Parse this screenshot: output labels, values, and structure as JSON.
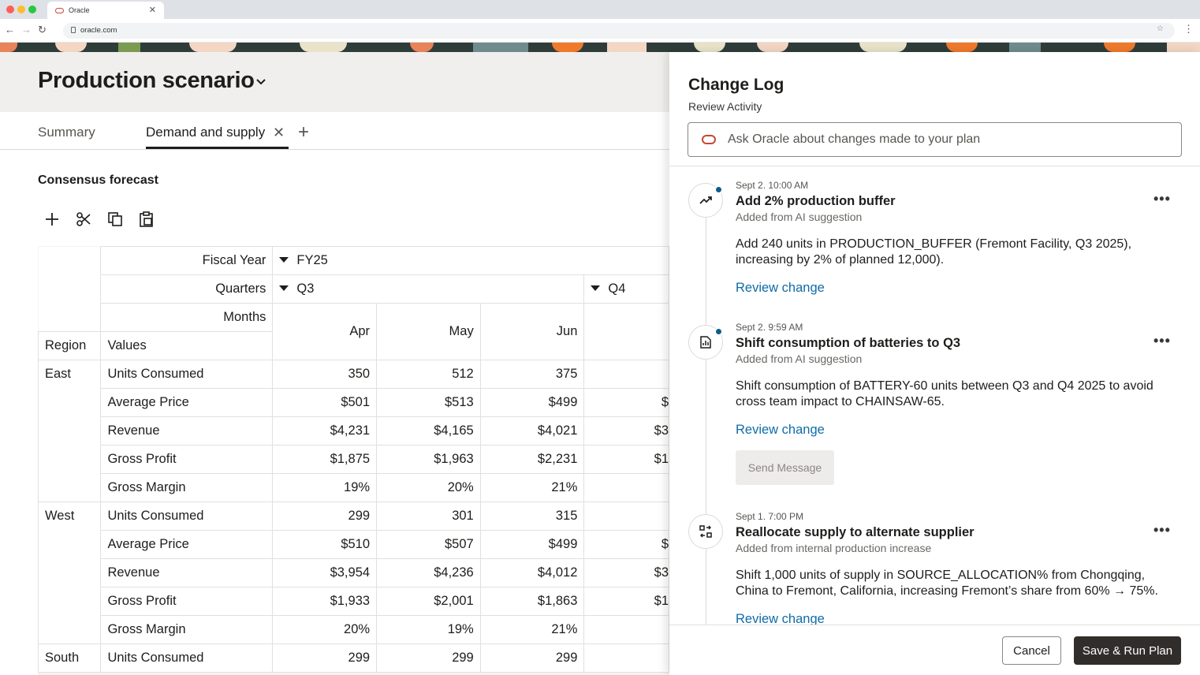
{
  "browser": {
    "tab_title": "Oracle",
    "url": "oracle.com"
  },
  "page": {
    "title": "Production scenario",
    "tabs": [
      {
        "label": "Summary"
      },
      {
        "label": "Demand and supply",
        "active": true
      }
    ],
    "section_title": "Consensus forecast"
  },
  "grid": {
    "fiscal_year_label": "Fiscal Year",
    "fiscal_year": "FY25",
    "quarters_label": "Quarters",
    "q3": "Q3",
    "q4": "Q4",
    "months_label": "Months",
    "months": [
      "Apr",
      "May",
      "Jun"
    ],
    "region_label": "Region",
    "values_label": "Values",
    "regions": [
      {
        "name": "East",
        "rows": [
          {
            "label": "Units Consumed",
            "values": [
              "350",
              "512",
              "375"
            ],
            "peek": ""
          },
          {
            "label": "Average Price",
            "values": [
              "$501",
              "$513",
              "$499"
            ],
            "peek": "$"
          },
          {
            "label": "Revenue",
            "values": [
              "$4,231",
              "$4,165",
              "$4,021"
            ],
            "peek": "$3"
          },
          {
            "label": "Gross Profit",
            "values": [
              "$1,875",
              "$1,963",
              "$2,231"
            ],
            "peek": "$1"
          },
          {
            "label": "Gross Margin",
            "values": [
              "19%",
              "20%",
              "21%"
            ],
            "peek": ""
          }
        ]
      },
      {
        "name": "West",
        "rows": [
          {
            "label": "Units Consumed",
            "values": [
              "299",
              "301",
              "315"
            ],
            "peek": ""
          },
          {
            "label": "Average Price",
            "values": [
              "$510",
              "$507",
              "$499"
            ],
            "peek": "$"
          },
          {
            "label": "Revenue",
            "values": [
              "$3,954",
              "$4,236",
              "$4,012"
            ],
            "peek": "$3"
          },
          {
            "label": "Gross Profit",
            "values": [
              "$1,933",
              "$2,001",
              "$1,863"
            ],
            "peek": "$1"
          },
          {
            "label": "Gross Margin",
            "values": [
              "20%",
              "19%",
              "21%"
            ],
            "peek": ""
          }
        ]
      },
      {
        "name": "South",
        "rows": [
          {
            "label": "Units Consumed",
            "values": [
              "299",
              "299",
              "299"
            ],
            "peek": ""
          }
        ]
      }
    ]
  },
  "change_log": {
    "title": "Change Log",
    "subtitle": "Review Activity",
    "ask_placeholder": "Ask Oracle about changes made to your plan",
    "review_label": "Review change",
    "send_message_label": "Send Message",
    "entries": [
      {
        "timestamp": "Sept 2. 10:00 AM",
        "title": "Add 2% production buffer",
        "source": "Added from AI suggestion",
        "body": "Add 240 units in PRODUCTION_BUFFER (Fremont Facility, Q3 2025), increasing by 2% of planned 12,000).",
        "icon": "trending-up-icon",
        "unread": true
      },
      {
        "timestamp": "Sept 2. 9:59 AM",
        "title": "Shift consumption of batteries to Q3",
        "source": "Added from AI suggestion",
        "body": "Shift consumption of BATTERY-60 units between Q3 and Q4 2025 to avoid cross team impact to CHAINSAW-65.",
        "icon": "report-chart-icon",
        "unread": true
      },
      {
        "timestamp": "Sept 1. 7:00 PM",
        "title": "Reallocate supply to alternate supplier",
        "source": "Added from internal production increase",
        "body": "Shift 1,000 units of supply in SOURCE_ALLOCATION% from Chongqing, China to Fremont, California, increasing Fremont’s share from 60% → 75%.",
        "icon": "swap-grid-icon",
        "unread": false
      }
    ],
    "cancel_label": "Cancel",
    "save_label": "Save & Run Plan"
  },
  "colors": {
    "oracle_red": "#c74634",
    "link_blue": "#0f6ca8",
    "dark_button": "#312d2a",
    "unread_dot": "#0f5c8c"
  }
}
